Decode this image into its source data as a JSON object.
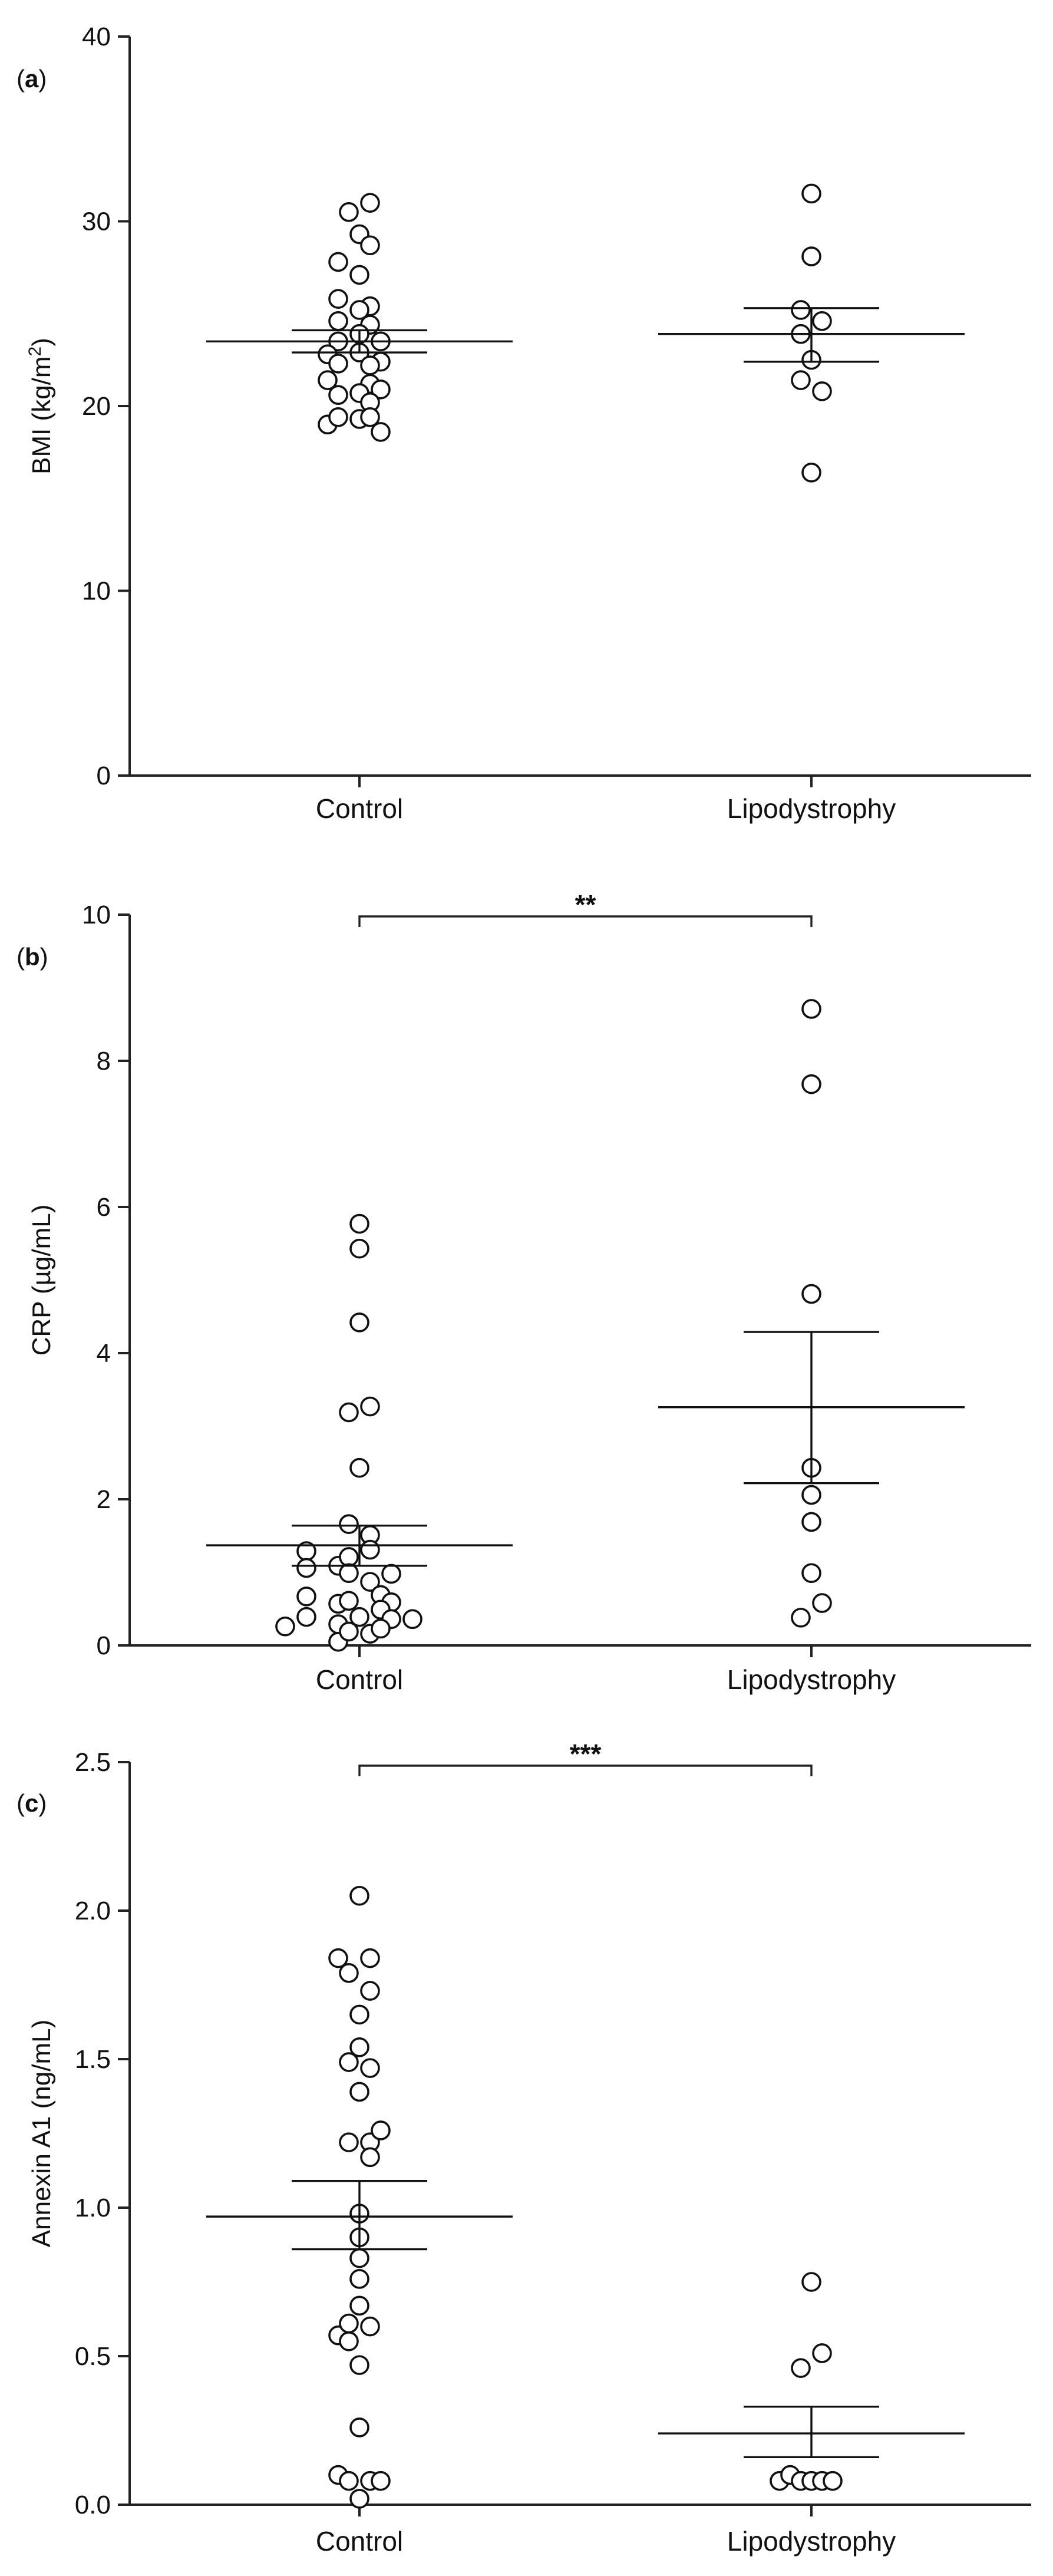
{
  "chart_data": [
    {
      "type": "scatter",
      "panel_label_prefix": "(",
      "panel_label": "a",
      "panel_label_suffix": ")",
      "ylabel": "BMI (kg/m",
      "ylabel_sup": "2",
      "ylabel_close": ")",
      "ylim": [
        0,
        40
      ],
      "yticks": [
        0,
        10,
        20,
        30,
        40
      ],
      "ytick_labels": [
        "0",
        "10",
        "20",
        "30",
        "40"
      ],
      "categories": [
        "Control",
        "Lipodystrophy"
      ],
      "groups": [
        {
          "name": "Control",
          "points": [
            [
              -0.5,
              30.5
            ],
            [
              0.5,
              31.0
            ],
            [
              0.0,
              29.3
            ],
            [
              0.5,
              28.7
            ],
            [
              -1.0,
              27.8
            ],
            [
              0.0,
              27.1
            ],
            [
              -1.0,
              25.8
            ],
            [
              0.5,
              25.4
            ],
            [
              0.0,
              25.2
            ],
            [
              -1.0,
              24.6
            ],
            [
              0.5,
              24.4
            ],
            [
              -1.0,
              23.5
            ],
            [
              0.0,
              23.9
            ],
            [
              1.0,
              23.5
            ],
            [
              -1.5,
              22.8
            ],
            [
              0.0,
              22.9
            ],
            [
              1.0,
              22.4
            ],
            [
              -1.0,
              22.3
            ],
            [
              0.5,
              22.2
            ],
            [
              -1.5,
              21.4
            ],
            [
              0.5,
              21.2
            ],
            [
              1.0,
              20.9
            ],
            [
              -1.0,
              20.6
            ],
            [
              0.0,
              20.7
            ],
            [
              0.5,
              20.2
            ],
            [
              -1.5,
              19.0
            ],
            [
              -1.0,
              19.4
            ],
            [
              0.0,
              19.3
            ],
            [
              0.5,
              19.4
            ],
            [
              1.0,
              18.6
            ]
          ],
          "mean": 23.5,
          "sem_low": 22.9,
          "sem_high": 24.1
        },
        {
          "name": "Lipodystrophy",
          "points": [
            [
              0.0,
              31.5
            ],
            [
              0.0,
              28.1
            ],
            [
              -0.5,
              25.2
            ],
            [
              0.5,
              24.6
            ],
            [
              -0.5,
              23.9
            ],
            [
              0.0,
              22.5
            ],
            [
              -0.5,
              21.4
            ],
            [
              0.5,
              20.8
            ],
            [
              0.0,
              16.4
            ]
          ],
          "mean": 23.9,
          "sem_low": 22.4,
          "sem_high": 25.3
        }
      ],
      "significance": null
    },
    {
      "type": "scatter",
      "panel_label_prefix": "(",
      "panel_label": "b",
      "panel_label_suffix": ")",
      "ylabel": "CRP (µg/mL)",
      "ylim": [
        0,
        10
      ],
      "yticks": [
        0,
        2,
        4,
        6,
        8,
        10
      ],
      "ytick_labels": [
        "0",
        "2",
        "4",
        "6",
        "8",
        "10"
      ],
      "categories": [
        "Control",
        "Lipodystrophy"
      ],
      "groups": [
        {
          "name": "Control",
          "points": [
            [
              0.0,
              5.77
            ],
            [
              0.0,
              5.43
            ],
            [
              0.0,
              4.42
            ],
            [
              -0.5,
              3.19
            ],
            [
              0.5,
              3.27
            ],
            [
              0.0,
              2.43
            ],
            [
              -0.5,
              1.66
            ],
            [
              0.5,
              1.51
            ],
            [
              -2.5,
              1.29
            ],
            [
              -1.0,
              1.09
            ],
            [
              -0.5,
              1.21
            ],
            [
              0.5,
              1.31
            ],
            [
              -2.5,
              1.06
            ],
            [
              -0.5,
              0.99
            ],
            [
              0.5,
              0.87
            ],
            [
              1.5,
              0.98
            ],
            [
              -2.5,
              0.67
            ],
            [
              -1.0,
              0.57
            ],
            [
              -0.5,
              0.61
            ],
            [
              1.0,
              0.69
            ],
            [
              1.5,
              0.59
            ],
            [
              -3.5,
              0.26
            ],
            [
              -2.5,
              0.39
            ],
            [
              -1.0,
              0.29
            ],
            [
              0.0,
              0.39
            ],
            [
              1.0,
              0.49
            ],
            [
              1.5,
              0.36
            ],
            [
              2.5,
              0.36
            ],
            [
              -1.0,
              0.05
            ],
            [
              -0.5,
              0.19
            ],
            [
              0.5,
              0.16
            ],
            [
              1.0,
              0.23
            ]
          ],
          "mean": 1.37,
          "sem_low": 1.09,
          "sem_high": 1.64
        },
        {
          "name": "Lipodystrophy",
          "points": [
            [
              0.0,
              8.71
            ],
            [
              0.0,
              7.68
            ],
            [
              0.0,
              4.81
            ],
            [
              0.0,
              2.43
            ],
            [
              0.0,
              2.06
            ],
            [
              0.0,
              1.69
            ],
            [
              0.0,
              0.99
            ],
            [
              -0.5,
              0.38
            ],
            [
              0.5,
              0.58
            ]
          ],
          "mean": 3.26,
          "sem_low": 2.22,
          "sem_high": 4.29
        }
      ],
      "significance": "**"
    },
    {
      "type": "scatter",
      "panel_label_prefix": "(",
      "panel_label": "c",
      "panel_label_suffix": ")",
      "ylabel": "Annexin A1 (ng/mL)",
      "ylim": [
        0,
        2.5
      ],
      "yticks": [
        0,
        0.5,
        1.0,
        1.5,
        2.0,
        2.5
      ],
      "ytick_labels": [
        "0.0",
        "0.5",
        "1.0",
        "1.5",
        "2.0",
        "2.5"
      ],
      "categories": [
        "Control",
        "Lipodystrophy"
      ],
      "groups": [
        {
          "name": "Control",
          "points": [
            [
              0.0,
              2.05
            ],
            [
              -1.0,
              1.84
            ],
            [
              -0.5,
              1.79
            ],
            [
              0.5,
              1.84
            ],
            [
              0.5,
              1.73
            ],
            [
              0.0,
              1.65
            ],
            [
              0.0,
              1.54
            ],
            [
              -0.5,
              1.49
            ],
            [
              0.5,
              1.47
            ],
            [
              0.0,
              1.39
            ],
            [
              -0.5,
              1.22
            ],
            [
              0.5,
              1.22
            ],
            [
              0.5,
              1.17
            ],
            [
              1.0,
              1.26
            ],
            [
              0.0,
              0.98
            ],
            [
              0.0,
              0.9
            ],
            [
              0.0,
              0.83
            ],
            [
              0.0,
              0.76
            ],
            [
              0.0,
              0.67
            ],
            [
              -1.0,
              0.57
            ],
            [
              -0.5,
              0.61
            ],
            [
              -0.5,
              0.55
            ],
            [
              0.5,
              0.6
            ],
            [
              0.0,
              0.47
            ],
            [
              0.0,
              0.26
            ],
            [
              -1.0,
              0.1
            ],
            [
              -0.5,
              0.08
            ],
            [
              0.5,
              0.08
            ],
            [
              1.0,
              0.08
            ],
            [
              0.0,
              0.02
            ]
          ],
          "mean": 0.97,
          "sem_low": 0.86,
          "sem_high": 1.09
        },
        {
          "name": "Lipodystrophy",
          "points": [
            [
              0.0,
              0.75
            ],
            [
              0.5,
              0.51
            ],
            [
              -0.5,
              0.46
            ],
            [
              -1.5,
              0.08
            ],
            [
              -1.0,
              0.1
            ],
            [
              -0.5,
              0.08
            ],
            [
              0.0,
              0.08
            ],
            [
              0.5,
              0.08
            ],
            [
              1.0,
              0.08
            ]
          ],
          "mean": 0.24,
          "sem_low": 0.16,
          "sem_high": 0.33
        }
      ],
      "significance": "***"
    }
  ]
}
